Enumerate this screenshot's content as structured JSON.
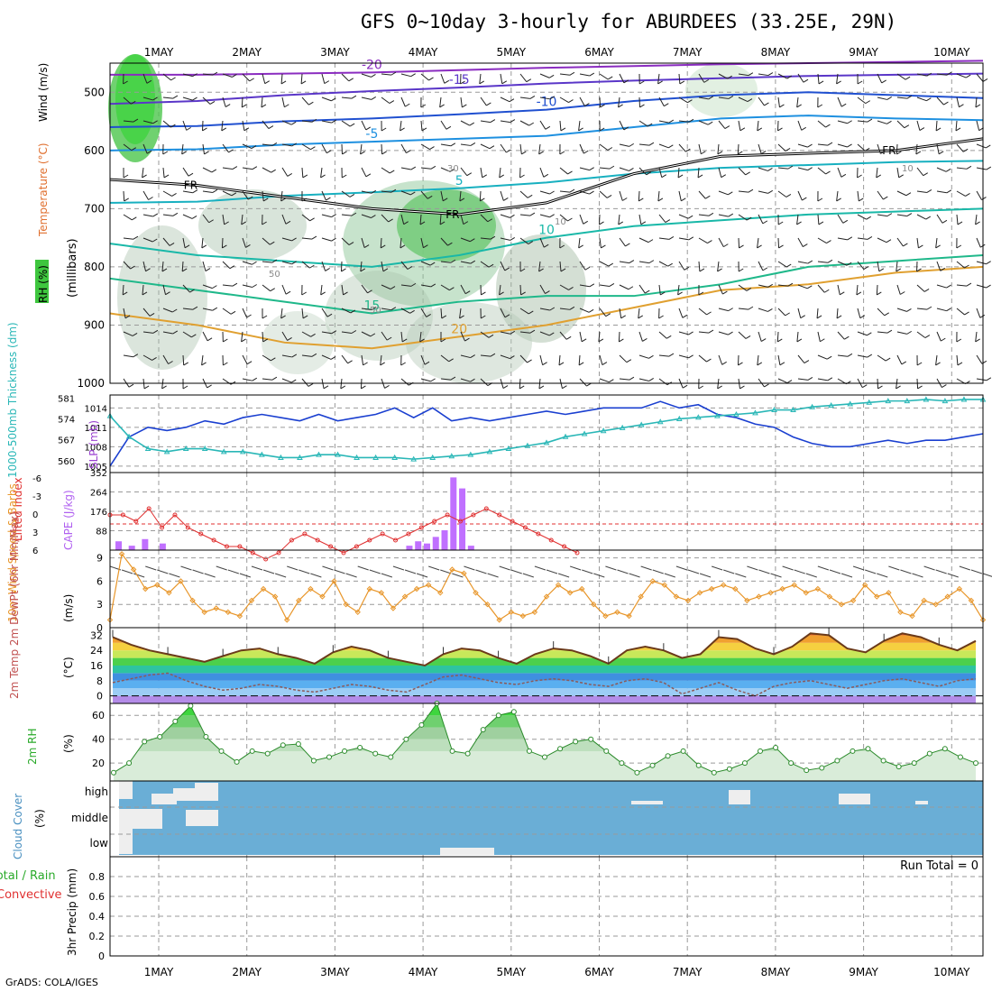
{
  "title": "GFS 0~10day 3-hourly for ABURDEES (33.25E, 29N)",
  "credit": "GrADS: COLA/IGES",
  "colors": {
    "grid": "#9a9a9a",
    "frame": "#000000",
    "slp": "#1a3fd0",
    "thickness": "#2ab7b7",
    "lifted_index": "#e03030",
    "cape": "#c070ff",
    "wind10m": "#e8962a",
    "cloud": "#6aaed6",
    "cloud_gap": "#eeeeee",
    "rh_green": "#3ec63e",
    "fr_line": "#000000",
    "dewpt": "#8c5a5a"
  },
  "chart_data": [
    {
      "id": "vertical_cross_section",
      "type": "heatmap",
      "ylabel_parts": [
        "RH (%)",
        "Temperature (°C)",
        "Wind (m/s)"
      ],
      "ylabel2": "(millibars)",
      "x_ticks": [
        "1MAY",
        "2MAY",
        "3MAY",
        "4MAY",
        "5MAY",
        "6MAY",
        "7MAY",
        "8MAY",
        "9MAY",
        "10MAY"
      ],
      "y_ticks": [
        500,
        600,
        700,
        800,
        900,
        1000
      ],
      "ylim": [
        1000,
        450
      ],
      "isotherms": [
        {
          "value": -20,
          "label": "-20",
          "color": "#8a2cc0",
          "p": [
            470,
            470,
            468,
            466,
            462,
            458,
            455,
            452,
            450,
            448,
            446
          ]
        },
        {
          "value": -15,
          "label": "-15",
          "color": "#5a36c8",
          "p": [
            520,
            515,
            505,
            498,
            492,
            485,
            480,
            476,
            472,
            470,
            468
          ]
        },
        {
          "value": -10,
          "label": "-10",
          "color": "#2050d0",
          "p": [
            560,
            558,
            550,
            545,
            538,
            530,
            515,
            505,
            500,
            505,
            510
          ]
        },
        {
          "value": -5,
          "label": "-5",
          "color": "#1e90e0",
          "p": [
            600,
            598,
            590,
            585,
            580,
            575,
            560,
            545,
            540,
            545,
            548
          ]
        },
        {
          "value": 5,
          "label": "5",
          "color": "#18b0c0",
          "p": [
            690,
            688,
            678,
            672,
            665,
            655,
            640,
            630,
            625,
            620,
            618
          ]
        },
        {
          "value": 10,
          "label": "10",
          "color": "#19b8a8",
          "p": [
            760,
            780,
            790,
            800,
            780,
            750,
            730,
            720,
            710,
            705,
            700
          ]
        },
        {
          "value": 15,
          "label": "15",
          "color": "#1fb88a",
          "p": [
            820,
            840,
            860,
            880,
            860,
            850,
            850,
            830,
            800,
            790,
            780
          ]
        },
        {
          "value": 20,
          "label": "20",
          "color": "#e0a030",
          "p": [
            880,
            900,
            930,
            940,
            920,
            900,
            870,
            840,
            830,
            810,
            800
          ]
        }
      ],
      "freezing_level": {
        "label": "FR",
        "p": [
          650,
          660,
          680,
          700,
          710,
          690,
          640,
          610,
          605,
          600,
          580
        ]
      },
      "rh_label_values": [
        "30",
        "50",
        "50",
        "10",
        "10"
      ]
    },
    {
      "id": "slp_thickness",
      "type": "line",
      "ylabel_left": "1000-500mb Thickness (dm)",
      "ylabel_right": "SLP (mb)",
      "left_ticks": [
        560,
        567,
        574,
        581
      ],
      "right_ticks": [
        1005,
        1008,
        1011,
        1014
      ],
      "ylim_slp": [
        1004,
        1016
      ],
      "ylim_thickness": [
        556,
        582
      ],
      "series": [
        {
          "name": "SLP (mb)",
          "values": [
            1005,
            1009.5,
            1011,
            1010.5,
            1011,
            1012,
            1011.5,
            1012.5,
            1013,
            1012.5,
            1012,
            1013,
            1012,
            1012.5,
            1013,
            1014,
            1012.5,
            1014,
            1012,
            1012.5,
            1012,
            1012.5,
            1013,
            1013.5,
            1013,
            1013.5,
            1014,
            1014,
            1014,
            1015,
            1014,
            1014.5,
            1013,
            1012.5,
            1011.5,
            1011,
            1009.5,
            1008.5,
            1008,
            1008,
            1008.5,
            1009,
            1008.5,
            1009,
            1009,
            1009.5,
            1010
          ]
        },
        {
          "name": "1000-500mb Thickness (dm)",
          "values": [
            575,
            568,
            564,
            563,
            564,
            564,
            563,
            563,
            562,
            561,
            561,
            562,
            562,
            561,
            561,
            561,
            560.5,
            561,
            561.5,
            562,
            563,
            564,
            565,
            566,
            568,
            569,
            570,
            571,
            572,
            573,
            574,
            574.5,
            575,
            575.5,
            576,
            577,
            577,
            578,
            578.5,
            579,
            579.5,
            580,
            580,
            580.5,
            580,
            580.5,
            580.5
          ]
        }
      ]
    },
    {
      "id": "lifted_cape",
      "type": "bar",
      "ylabel_left": "Lifted Index",
      "ylabel_right": "CAPE (J/kg)",
      "left_ticks": [
        "-6",
        "-3",
        "0",
        "3",
        "6"
      ],
      "right_ticks": [
        "88",
        "176",
        "264",
        "352"
      ],
      "ylim_cape": [
        0,
        352
      ],
      "lifted_index": [
        1,
        1,
        2,
        0,
        3,
        1,
        3,
        4,
        5,
        6,
        6,
        7,
        8,
        7,
        5,
        4,
        5,
        6,
        7,
        6,
        5,
        4,
        5,
        4,
        3,
        2,
        1,
        2,
        1,
        0,
        1,
        2,
        3,
        4,
        5,
        6,
        7
      ],
      "cape_bars": [
        {
          "day": 0.55,
          "value": 40
        },
        {
          "day": 0.7,
          "value": 20
        },
        {
          "day": 0.85,
          "value": 50
        },
        {
          "day": 1.05,
          "value": 30
        },
        {
          "day": 3.85,
          "value": 20
        },
        {
          "day": 3.95,
          "value": 40
        },
        {
          "day": 4.05,
          "value": 30
        },
        {
          "day": 4.15,
          "value": 60
        },
        {
          "day": 4.25,
          "value": 90
        },
        {
          "day": 4.35,
          "value": 330
        },
        {
          "day": 4.45,
          "value": 280
        },
        {
          "day": 4.55,
          "value": 20
        }
      ]
    },
    {
      "id": "wind_10m",
      "type": "line",
      "ylabel": "10m Wind Speed & Barbs",
      "unit": "(m/s)",
      "y_ticks": [
        "0",
        "3",
        "6",
        "9"
      ],
      "ylim": [
        0,
        10
      ],
      "series": [
        {
          "name": "10m Wind Speed",
          "values": [
            1,
            9.5,
            7.5,
            5,
            5.5,
            4.5,
            6,
            3.5,
            2,
            2.5,
            2,
            1.5,
            3.5,
            5,
            4,
            1,
            3.5,
            5,
            4,
            6,
            3,
            2,
            5,
            4.5,
            2.5,
            4,
            5,
            5.5,
            4.5,
            7.5,
            7,
            4.5,
            3,
            1,
            2,
            1.5,
            2,
            4,
            5.5,
            4.5,
            5,
            3,
            1.5,
            2,
            1.5,
            4,
            6,
            5.5,
            4,
            3.5,
            4.5,
            5,
            5.5,
            5,
            3.5,
            4,
            4.5,
            5,
            5.5,
            4.5,
            5,
            4,
            3,
            3.5,
            5.5,
            4,
            4.5,
            2,
            1.5,
            3.5,
            3,
            4,
            5,
            3.5,
            1
          ]
        }
      ]
    },
    {
      "id": "temp_dewpt",
      "type": "area",
      "ylabel": "2m Temp 2m DewPt (6hr Min/Max)",
      "unit": "(°C)",
      "y_ticks": [
        "0",
        "8",
        "16",
        "24",
        "32"
      ],
      "ylim": [
        -4,
        36
      ],
      "series": [
        {
          "name": "2m Temp",
          "values": [
            31,
            27,
            24,
            22,
            20,
            18,
            21,
            24,
            25,
            22,
            20,
            17,
            23,
            26,
            24,
            20,
            18,
            16,
            22,
            25,
            24,
            20,
            17,
            22,
            25,
            24,
            21,
            17,
            24,
            26,
            24,
            20,
            22,
            31,
            30,
            25,
            22,
            26,
            33,
            32,
            25,
            23,
            29,
            33,
            31,
            27,
            24,
            29
          ]
        },
        {
          "name": "2m DewPt",
          "values": [
            7,
            9,
            11,
            12,
            8,
            5,
            3,
            4,
            6,
            5,
            3,
            2,
            4,
            6,
            5,
            3,
            2,
            6,
            10,
            11,
            9,
            7,
            6,
            8,
            9,
            8,
            6,
            5,
            8,
            9,
            7,
            1,
            4,
            7,
            3,
            0,
            5,
            7,
            8,
            6,
            4,
            6,
            8,
            9,
            7,
            5,
            8,
            9
          ]
        }
      ]
    },
    {
      "id": "rh_2m",
      "type": "area",
      "ylabel": "2m RH",
      "unit": "(%)",
      "y_ticks": [
        "20",
        "40",
        "60"
      ],
      "ylim": [
        5,
        70
      ],
      "series": [
        {
          "name": "2m RH",
          "values": [
            12,
            20,
            38,
            42,
            55,
            68,
            42,
            30,
            21,
            30,
            28,
            35,
            36,
            22,
            25,
            30,
            33,
            28,
            25,
            40,
            52,
            70,
            30,
            28,
            48,
            60,
            63,
            30,
            25,
            32,
            38,
            40,
            30,
            20,
            12,
            18,
            26,
            30,
            18,
            12,
            15,
            20,
            30,
            33,
            20,
            14,
            16,
            22,
            30,
            32,
            22,
            17,
            20,
            28,
            32,
            25,
            20
          ]
        }
      ]
    },
    {
      "id": "cloud_cover",
      "type": "heatmap",
      "ylabel": "Cloud Cover",
      "unit": "(%)",
      "levels": [
        "high",
        "middle",
        "low"
      ],
      "grid": "blue = overcast; light patches = clear periods"
    },
    {
      "id": "precip_3hr",
      "type": "bar",
      "ylabel_left1": "Total / Rain",
      "ylabel_left2": "Convective",
      "ylabel": "3hr Precip (mm)",
      "run_total": "Run Total = 0",
      "y_ticks": [
        "0",
        "0.2",
        "0.4",
        "0.6",
        "0.8"
      ],
      "ylim": [
        0,
        1
      ],
      "values": []
    }
  ]
}
